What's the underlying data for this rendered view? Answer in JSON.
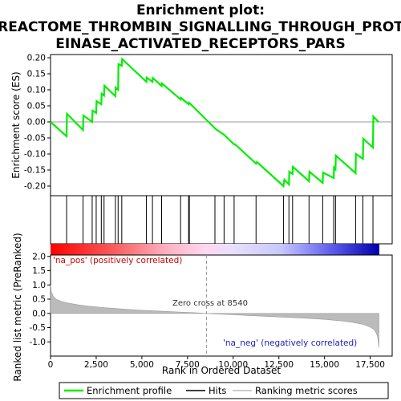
{
  "chart_data": {
    "type": "line",
    "title_lines": [
      "Enrichment plot:",
      "REACTOME_THROMBIN_SIGNALLING_THROUGH_PROT",
      "EINASE_ACTIVATED_RECEPTORS_PARS"
    ],
    "top_panel": {
      "ylabel": "Enrichment score (ES)",
      "ylim": [
        -0.23,
        0.21
      ],
      "yticks": [
        0.2,
        0.15,
        0.1,
        0.05,
        0.0,
        -0.05,
        -0.1,
        -0.15,
        -0.2
      ],
      "ytick_labels": [
        "0.20",
        "0.15",
        "0.10",
        "0.05",
        "0.00",
        "-0.05",
        "-0.10",
        "-0.15",
        "-0.20"
      ],
      "series": [
        {
          "name": "Enrichment profile",
          "color": "#00ee00",
          "x": [
            0,
            880,
            900,
            1780,
            1800,
            2280,
            2300,
            2500,
            2520,
            2780,
            2800,
            2930,
            2950,
            3550,
            3570,
            3700,
            3720,
            3900,
            3920,
            5250,
            5270,
            5580,
            5600,
            6080,
            6100,
            7120,
            7140,
            7560,
            7580,
            9000,
            9100,
            9500,
            10050,
            10100,
            11250,
            11300,
            12750,
            12800,
            13050,
            13070,
            13250,
            13270,
            14150,
            14170,
            14900,
            14920,
            15500,
            15520,
            15600,
            15620,
            16700,
            16720,
            17100,
            17120,
            17650,
            17670,
            17950
          ],
          "y": [
            0.0,
            -0.045,
            0.025,
            -0.025,
            0.02,
            0.0,
            0.035,
            0.028,
            0.065,
            0.055,
            0.088,
            0.082,
            0.113,
            0.08,
            0.107,
            0.1,
            0.18,
            0.175,
            0.196,
            0.125,
            0.138,
            0.125,
            0.137,
            0.112,
            0.12,
            0.07,
            0.075,
            0.055,
            0.06,
            -0.02,
            -0.025,
            -0.04,
            -0.07,
            -0.07,
            -0.13,
            -0.125,
            -0.2,
            -0.18,
            -0.195,
            -0.155,
            -0.162,
            -0.14,
            -0.185,
            -0.155,
            -0.19,
            -0.158,
            -0.175,
            -0.142,
            -0.148,
            -0.105,
            -0.16,
            -0.1,
            -0.115,
            -0.052,
            -0.08,
            0.017,
            0.0
          ]
        }
      ]
    },
    "hits_x": [
      880,
      1780,
      2280,
      2500,
      2780,
      2930,
      3550,
      3700,
      3900,
      5250,
      5580,
      6080,
      7120,
      7560,
      7600,
      9000,
      9500,
      10050,
      11250,
      12750,
      13050,
      13250,
      14150,
      14900,
      15500,
      15600,
      16700,
      17100,
      17650
    ],
    "bottom_panel": {
      "ylabel": "Ranked list metric (PreRanked)",
      "ylim": [
        -1.5,
        2.05
      ],
      "yticks": [
        2.0,
        1.5,
        1.0,
        0.5,
        0.0,
        -0.5,
        -1.0
      ],
      "ytick_labels": [
        "2.0",
        "1.5",
        "1.0",
        "0.5",
        "0.0",
        "-0.5",
        "-1.0"
      ],
      "metric_x": [
        0,
        50,
        150,
        300,
        600,
        1000,
        1500,
        2000,
        3000,
        4000,
        5000,
        6000,
        7000,
        8000,
        8540,
        9000,
        10000,
        11000,
        12000,
        13000,
        14000,
        15000,
        16000,
        16500,
        17000,
        17300,
        17500,
        17700,
        17800,
        17900,
        17980
      ],
      "metric_y": [
        1.0,
        0.75,
        0.6,
        0.5,
        0.42,
        0.36,
        0.3,
        0.26,
        0.2,
        0.15,
        0.11,
        0.08,
        0.05,
        0.02,
        0.0,
        -0.02,
        -0.05,
        -0.08,
        -0.11,
        -0.14,
        -0.17,
        -0.21,
        -0.27,
        -0.31,
        -0.37,
        -0.43,
        -0.48,
        -0.56,
        -0.65,
        -0.8,
        -1.2
      ],
      "zero_cross_label": "Zero cross at 8540",
      "zero_cross_x": 8540,
      "pos_label": "'na_pos' (positively correlated)",
      "neg_label": "'na_neg' (negatively correlated)"
    },
    "xlabel": "Rank in Ordered Dataset",
    "xlim": [
      0,
      18000
    ],
    "xticks": [
      0,
      2500,
      5000,
      7500,
      10000,
      12500,
      15000,
      17500
    ],
    "xtick_labels": [
      "0",
      "2,500",
      "5,000",
      "7,500",
      "10,000",
      "12,500",
      "15,000",
      "17,500"
    ],
    "legend": {
      "placement": "bottom",
      "items": [
        "Enrichment profile",
        "Hits",
        "Ranking metric scores"
      ],
      "colors": [
        "#00ee00",
        "#000000",
        "#bbbbbb"
      ]
    }
  }
}
